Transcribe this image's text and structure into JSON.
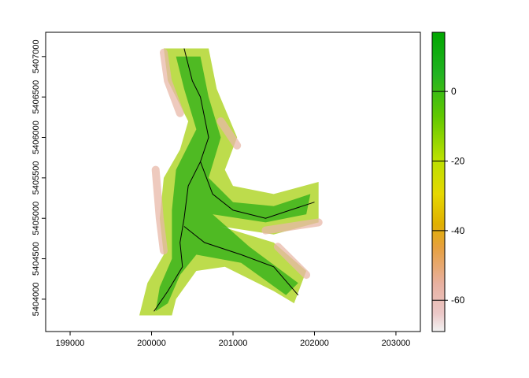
{
  "chart_data": {
    "type": "raster-map",
    "x_ticks": [
      "199000",
      "200000",
      "201000",
      "202000",
      "203000"
    ],
    "x_tick_values": [
      199000,
      200000,
      201000,
      202000,
      203000
    ],
    "y_ticks": [
      "5404000",
      "5404500",
      "5405000",
      "5405500",
      "5406000",
      "5406500",
      "5407000"
    ],
    "y_tick_values": [
      5404000,
      5404500,
      5405000,
      5405500,
      5406000,
      5406500,
      5407000
    ],
    "xlim": [
      198700,
      203300
    ],
    "ylim": [
      5403600,
      5407300
    ],
    "legend": {
      "position": "right",
      "ticks": [
        "0",
        "-20",
        "-40",
        "-60"
      ],
      "tick_values": [
        0,
        -20,
        -40,
        -60
      ],
      "range": [
        -69,
        17
      ],
      "color_breaks": [
        {
          "from": -69,
          "to": -60,
          "color": "#f2f2f2"
        },
        {
          "from": -60,
          "to": -40,
          "color": "#e8b3b3"
        },
        {
          "from": -40,
          "to": -20,
          "color": "#e6c21a"
        },
        {
          "from": -20,
          "to": 17,
          "color": "#1bb81b"
        }
      ],
      "colors": [
        "#f2f2f2",
        "#ebbfbf",
        "#e8a87a",
        "#e0a800",
        "#e6d800",
        "#b3de00",
        "#5cc800",
        "#1aaf1a",
        "#00a600"
      ]
    },
    "river_centerlines": [
      {
        "points": [
          [
            200400,
            5407100
          ],
          [
            200500,
            5406700
          ],
          [
            200600,
            5406500
          ],
          [
            200700,
            5406000
          ],
          [
            200600,
            5405700
          ],
          [
            200450,
            5405400
          ],
          [
            200400,
            5405000
          ],
          [
            200350,
            5404700
          ],
          [
            200380,
            5404400
          ],
          [
            200200,
            5404100
          ],
          [
            200030,
            5403850
          ]
        ]
      },
      {
        "points": [
          [
            200600,
            5405700
          ],
          [
            200750,
            5405300
          ],
          [
            201000,
            5405100
          ],
          [
            201400,
            5405000
          ],
          [
            201700,
            5405100
          ],
          [
            202000,
            5405200
          ]
        ]
      },
      {
        "points": [
          [
            200400,
            5404900
          ],
          [
            200650,
            5404700
          ],
          [
            201100,
            5404550
          ],
          [
            201500,
            5404400
          ],
          [
            201800,
            5404050
          ]
        ]
      }
    ],
    "channel_polygons": [
      {
        "points": [
          [
            200150,
            5407100
          ],
          [
            200700,
            5407100
          ],
          [
            200800,
            5406600
          ],
          [
            201050,
            5406000
          ],
          [
            200900,
            5405600
          ],
          [
            201000,
            5405400
          ],
          [
            201500,
            5405300
          ],
          [
            202050,
            5405450
          ],
          [
            202050,
            5404950
          ],
          [
            201500,
            5404800
          ],
          [
            200850,
            5404900
          ],
          [
            201500,
            5404700
          ],
          [
            201900,
            5404350
          ],
          [
            201750,
            5403950
          ],
          [
            201500,
            5404100
          ],
          [
            200900,
            5404400
          ],
          [
            200550,
            5404350
          ],
          [
            200300,
            5404000
          ],
          [
            200250,
            5403800
          ],
          [
            199850,
            5403800
          ],
          [
            199950,
            5404200
          ],
          [
            200150,
            5404550
          ],
          [
            200100,
            5405000
          ],
          [
            200150,
            5405500
          ],
          [
            200350,
            5405850
          ],
          [
            200450,
            5406200
          ],
          [
            200200,
            5406700
          ]
        ],
        "value": -10
      },
      {
        "points": [
          [
            200300,
            5407000
          ],
          [
            200600,
            5407000
          ],
          [
            200700,
            5406500
          ],
          [
            200850,
            5406000
          ],
          [
            200700,
            5405500
          ],
          [
            201000,
            5405200
          ],
          [
            201500,
            5405150
          ],
          [
            201950,
            5405300
          ],
          [
            201900,
            5405050
          ],
          [
            201400,
            5404950
          ],
          [
            200750,
            5405050
          ],
          [
            201200,
            5404650
          ],
          [
            201800,
            5404200
          ],
          [
            201650,
            5404050
          ],
          [
            201100,
            5404450
          ],
          [
            200550,
            5404550
          ],
          [
            200350,
            5404300
          ],
          [
            200200,
            5403950
          ],
          [
            200050,
            5403850
          ],
          [
            200100,
            5404150
          ],
          [
            200250,
            5404500
          ],
          [
            200250,
            5405100
          ],
          [
            200300,
            5405600
          ],
          [
            200550,
            5406100
          ],
          [
            200400,
            5406600
          ]
        ],
        "value": 8
      }
    ]
  }
}
